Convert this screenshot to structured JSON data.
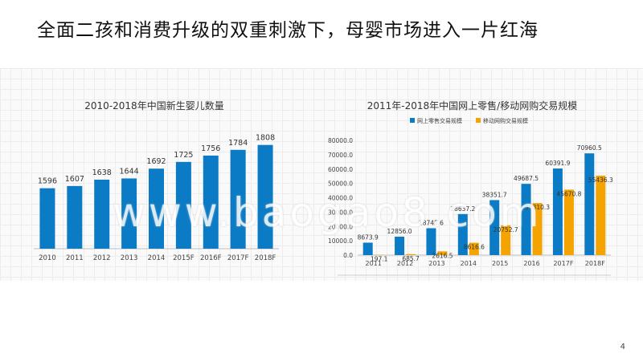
{
  "slide": {
    "title": "全面二孩和消费升级的双重刺激下，母婴市场进入一片红海",
    "page_number": "4",
    "watermark": "www.baogao8.com"
  },
  "chart_data": [
    {
      "type": "bar",
      "title": "2010-2018年中国新生婴儿数量",
      "categories": [
        "2010",
        "2011",
        "2012",
        "2013",
        "2014",
        "2015F",
        "2016F",
        "2017F",
        "2018F"
      ],
      "values": [
        1596,
        1607,
        1638,
        1644,
        1692,
        1725,
        1756,
        1784,
        1808
      ],
      "ylim": [
        1300,
        1850
      ],
      "color": "#0a7bc4"
    },
    {
      "type": "bar",
      "title": "2011年-2018年中国网上零售/移动网购交易规模",
      "categories": [
        "2011",
        "2012",
        "2013",
        "2014",
        "2015",
        "2016",
        "2017F",
        "2018F"
      ],
      "series": [
        {
          "name": "网上零售交易规模",
          "values": [
            8673.9,
            12856.0,
            18745.6,
            28637.2,
            38351.7,
            49687.5,
            60391.9,
            70960.5
          ],
          "labels": [
            "8673.9",
            "12856.0",
            "18745.6",
            "28637.2",
            "38351.7",
            "49687.5",
            "60391.9",
            "70960.5"
          ],
          "color": "#0a7bc4"
        },
        {
          "name": "移动网购交易规模",
          "values": [
            197.1,
            685.7,
            2616.5,
            8616.6,
            20752.7,
            36310.3,
            45670.8,
            55436.3
          ],
          "labels": [
            "197.1",
            "685.7",
            "2616.5",
            "8616.6",
            "20752.7",
            "36310.3",
            "45670.8",
            "55436.3"
          ],
          "color": "#f5a300"
        }
      ],
      "ylim": [
        0,
        80000
      ],
      "yticks": [
        "0.0",
        "10000.0",
        "20000.0",
        "30000.0",
        "40000.0",
        "50000.0",
        "60000.0",
        "70000.0",
        "80000.0"
      ],
      "legend": "top"
    }
  ]
}
